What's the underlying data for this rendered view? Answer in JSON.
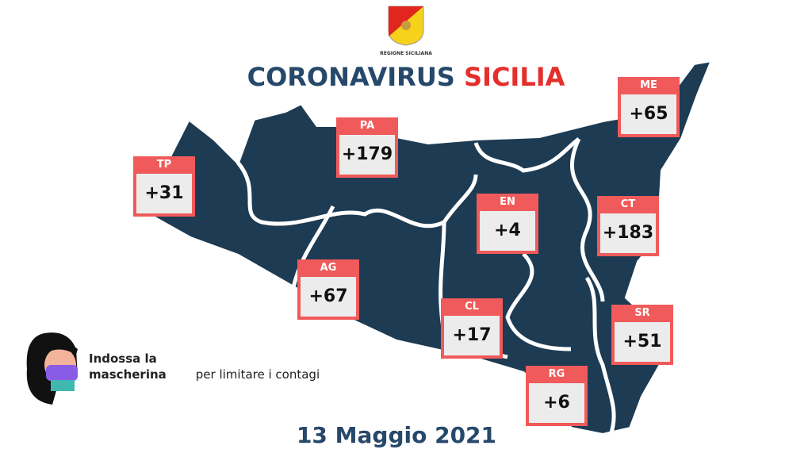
{
  "header": {
    "logo_text": "REGIONE SICILIANA",
    "title_part1": "CORONAVIRUS",
    "title_part2": "SICILIA"
  },
  "provinces": [
    {
      "code": "TP",
      "value": "+31"
    },
    {
      "code": "PA",
      "value": "+179"
    },
    {
      "code": "ME",
      "value": "+65"
    },
    {
      "code": "EN",
      "value": "+4"
    },
    {
      "code": "CT",
      "value": "+183"
    },
    {
      "code": "AG",
      "value": "+67"
    },
    {
      "code": "CL",
      "value": "+17"
    },
    {
      "code": "SR",
      "value": "+51"
    },
    {
      "code": "RG",
      "value": "+6"
    }
  ],
  "message": {
    "bold": "Indossa la mascherina",
    "rest": "per limitare i contagi"
  },
  "date": "13 Maggio 2021",
  "colors": {
    "navy": "#26486a",
    "red": "#e42f2c",
    "box": "#f05a5a",
    "map": "#1c3a52"
  }
}
